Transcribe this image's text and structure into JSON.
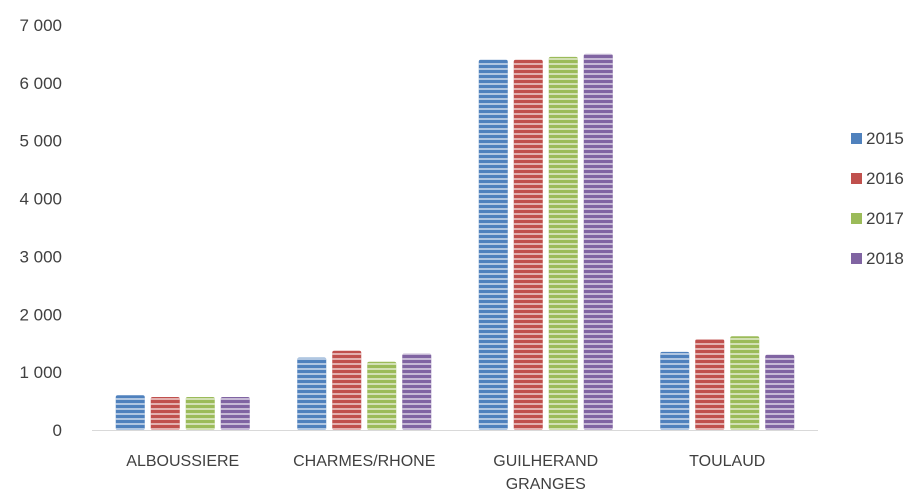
{
  "chart_data": {
    "type": "bar",
    "categories": [
      [
        "ALBOUSSIERE"
      ],
      [
        "CHARMES/RHONE"
      ],
      [
        "GUILHERAND",
        "GRANGES"
      ],
      [
        "TOULAUD"
      ]
    ],
    "series": [
      {
        "name": "2015",
        "color": "#4f81bd",
        "values": [
          600,
          1250,
          6400,
          1350
        ]
      },
      {
        "name": "2016",
        "color": "#c0504d",
        "values": [
          570,
          1370,
          6400,
          1570
        ]
      },
      {
        "name": "2017",
        "color": "#9bbb59",
        "values": [
          570,
          1180,
          6450,
          1620
        ]
      },
      {
        "name": "2018",
        "color": "#8064a2",
        "values": [
          570,
          1320,
          6500,
          1300
        ]
      }
    ],
    "ylim": [
      0,
      7000
    ],
    "yticks": [
      0,
      1000,
      2000,
      3000,
      4000,
      5000,
      6000,
      7000
    ],
    "ytick_labels": [
      "0",
      "1 000",
      "2 000",
      "3 000",
      "4 000",
      "5 000",
      "6 000",
      "7 000"
    ],
    "title": "",
    "xlabel": "",
    "ylabel": "",
    "grid": false,
    "legend_position": "right"
  }
}
